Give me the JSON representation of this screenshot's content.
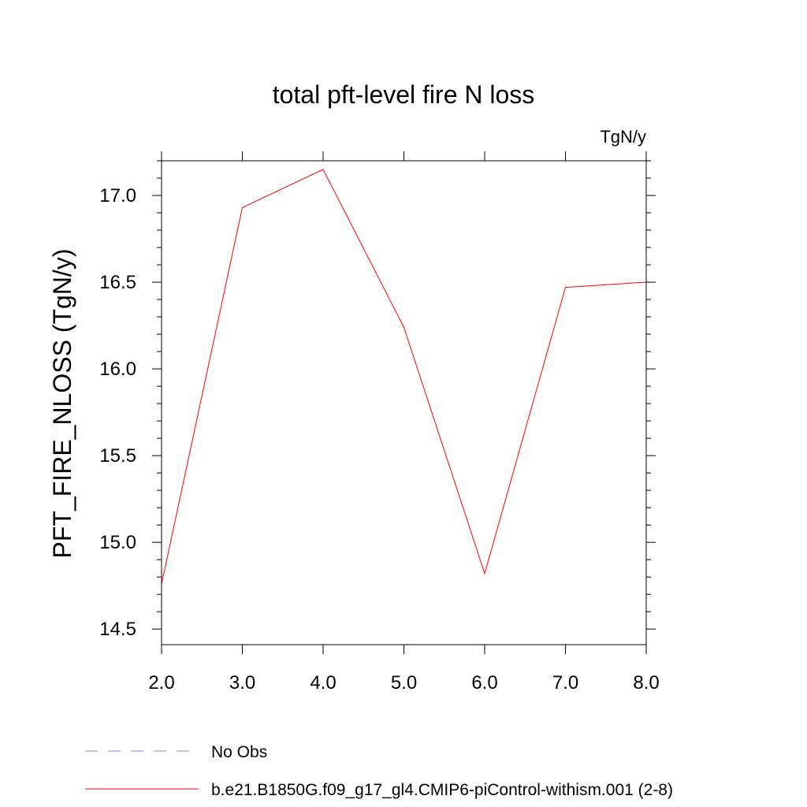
{
  "chart_data": {
    "type": "line",
    "title": "total pft-level fire N loss",
    "units_label": "TgN/y",
    "ylabel": "PFT_FIRE_NLOSS  (TgN/y)",
    "xlabel": "",
    "xlim": [
      2.0,
      8.0
    ],
    "ylim": [
      14.41,
      17.2
    ],
    "x_ticks": [
      2.0,
      3.0,
      4.0,
      5.0,
      6.0,
      7.0,
      8.0
    ],
    "x_tick_labels": [
      "2.0",
      "3.0",
      "4.0",
      "5.0",
      "6.0",
      "7.0",
      "8.0"
    ],
    "x_minor_ticks": [],
    "y_ticks": [
      14.5,
      15.0,
      15.5,
      16.0,
      16.5,
      17.0
    ],
    "y_tick_labels": [
      "14.5",
      "15.0",
      "15.5",
      "16.0",
      "16.5",
      "17.0"
    ],
    "y_minor_ticks": [
      14.6,
      14.7,
      14.8,
      14.9,
      15.1,
      15.2,
      15.3,
      15.4,
      15.6,
      15.7,
      15.8,
      15.9,
      16.1,
      16.2,
      16.3,
      16.4,
      16.6,
      16.7,
      16.8,
      16.9,
      17.1,
      17.2
    ],
    "grid": false,
    "legend_placement": "bottom",
    "series": [
      {
        "name": "b.e21.B1850G.f09_g17_gl4.CMIP6-piControl-withism.001 (2-8)",
        "color": "#ff0000",
        "dash": "solid",
        "x": [
          2.0,
          3.0,
          4.0,
          5.0,
          6.0,
          7.0,
          8.0
        ],
        "y": [
          14.76,
          16.93,
          17.15,
          16.24,
          14.82,
          16.47,
          16.5
        ]
      }
    ],
    "legend": [
      {
        "label": "No Obs",
        "color": "#8a80d8",
        "dash": "dashed"
      },
      {
        "label": "b.e21.B1850G.f09_g17_gl4.CMIP6-piControl-withism.001 (2-8)",
        "color": "#ff0000",
        "dash": "solid"
      }
    ]
  }
}
